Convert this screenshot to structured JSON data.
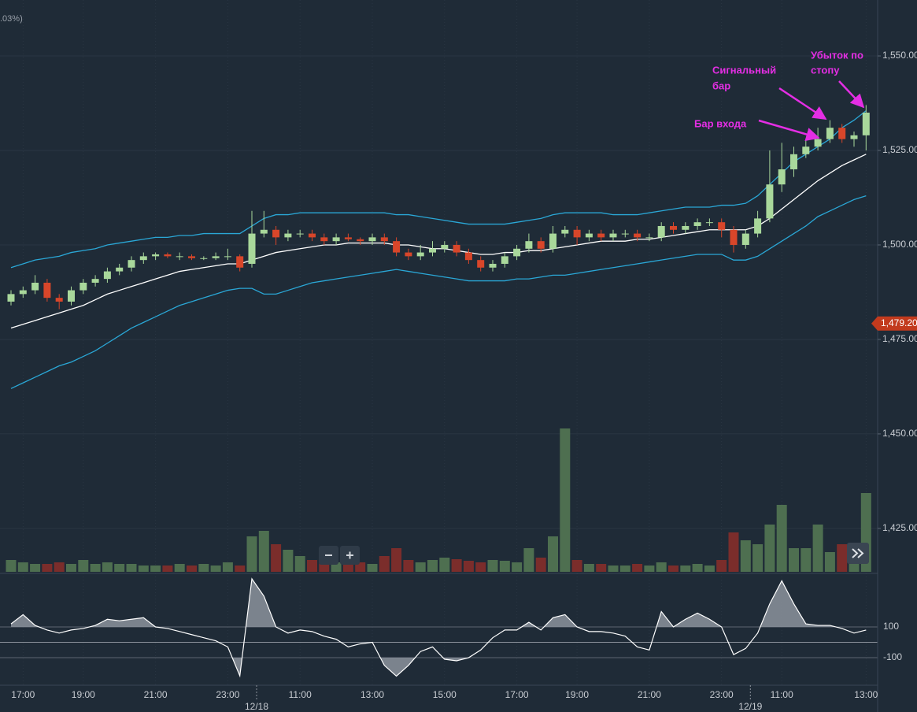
{
  "chart_data": [
    {
      "type": "candlestick",
      "legend_fragment": ".03%)",
      "up_color": "#a9d89b",
      "down_color": "#d8462a",
      "open": [
        1485,
        1487,
        1488,
        1490,
        1486,
        1485,
        1488,
        1490,
        1491,
        1493,
        1494,
        1496,
        1497,
        1497.5,
        1497,
        1497,
        1496.5,
        1496.5,
        1497,
        1497,
        1495,
        1503,
        1504,
        1502,
        1503,
        1503,
        1502,
        1501,
        1502,
        1501.5,
        1501,
        1502,
        1501,
        1498,
        1497,
        1498,
        1499,
        1500,
        1498,
        1496,
        1494,
        1495,
        1497,
        1499,
        1501,
        1499,
        1503,
        1504,
        1502,
        1503,
        1502,
        1503,
        1503,
        1502,
        1502,
        1505,
        1504,
        1505,
        1506,
        1506,
        1504,
        1500,
        1503,
        1507,
        1516,
        1520,
        1524,
        1526,
        1528,
        1531,
        1528,
        1529
      ],
      "high": [
        1488,
        1489,
        1492,
        1491,
        1487,
        1489,
        1491,
        1492,
        1494,
        1495,
        1497,
        1498,
        1498,
        1498,
        1498,
        1497.5,
        1497,
        1498,
        1499,
        1497.5,
        1509,
        1509,
        1505,
        1504,
        1504,
        1504,
        1503,
        1503,
        1503,
        1502,
        1503,
        1503,
        1502,
        1499,
        1500,
        1501,
        1501,
        1501,
        1499,
        1497,
        1496,
        1498,
        1500,
        1503,
        1502,
        1505,
        1505,
        1505,
        1504,
        1504,
        1504,
        1504,
        1504,
        1503,
        1506,
        1506,
        1506,
        1507,
        1507,
        1507,
        1505,
        1504,
        1509,
        1525,
        1527,
        1526,
        1528,
        1531,
        1533,
        1532,
        1530,
        1537
      ],
      "low": [
        1484,
        1486,
        1487,
        1485,
        1483,
        1484,
        1487,
        1489,
        1490,
        1492,
        1493,
        1495,
        1496,
        1496.5,
        1496,
        1496,
        1496,
        1496,
        1496,
        1493,
        1494,
        1502,
        1500,
        1501,
        1502,
        1501,
        1500,
        1500,
        1501,
        1500,
        1500,
        1500,
        1497,
        1496,
        1496,
        1497,
        1498,
        1497,
        1495,
        1493,
        1493,
        1494,
        1496,
        1498,
        1498,
        1498,
        1502,
        1500,
        1501,
        1501,
        1501,
        1502,
        1501,
        1501,
        1501,
        1503,
        1503,
        1504,
        1505,
        1502,
        1498,
        1499,
        1502,
        1506,
        1514,
        1518,
        1523,
        1525,
        1527,
        1527,
        1526,
        1525
      ],
      "close": [
        1487,
        1488,
        1490,
        1486,
        1485,
        1488,
        1490,
        1491,
        1493,
        1494,
        1496,
        1497,
        1497.5,
        1497,
        1497,
        1496.5,
        1496.5,
        1497,
        1497,
        1494,
        1503,
        1504,
        1502,
        1503,
        1503,
        1502,
        1501,
        1502,
        1501.5,
        1501,
        1502,
        1501,
        1498,
        1497,
        1498,
        1499,
        1500,
        1498,
        1496,
        1494,
        1495,
        1497,
        1499,
        1501,
        1499,
        1503,
        1504,
        1502,
        1503,
        1502,
        1503,
        1503,
        1502,
        1502,
        1505,
        1504,
        1505,
        1506,
        1506,
        1504,
        1500,
        1503,
        1507,
        1516,
        1520,
        1524,
        1526,
        1528,
        1531,
        1528,
        1529,
        1535
      ],
      "bands": [
        {
          "color": "#2aa7d6",
          "values": [
            1494,
            1495,
            1496,
            1496.5,
            1497,
            1498,
            1498.5,
            1499,
            1500,
            1500.5,
            1501,
            1501.5,
            1502,
            1502,
            1502.5,
            1502.5,
            1503,
            1503,
            1503,
            1503,
            1505,
            1507,
            1508,
            1508,
            1508.5,
            1508.5,
            1508.5,
            1508.5,
            1508.5,
            1508.5,
            1508.5,
            1508.5,
            1508,
            1508,
            1507.5,
            1507,
            1506.5,
            1506,
            1505.5,
            1505.5,
            1505.5,
            1505.5,
            1506,
            1506.5,
            1507,
            1508,
            1508.5,
            1508.5,
            1508.5,
            1508.5,
            1508,
            1508,
            1508,
            1508.5,
            1509,
            1509.5,
            1510,
            1510,
            1510,
            1510.5,
            1510.5,
            1511,
            1513,
            1516,
            1519,
            1522,
            1524,
            1526,
            1528,
            1531,
            1533,
            1535.5
          ]
        },
        {
          "color": "#ffffff",
          "values": [
            1478,
            1479,
            1480,
            1481,
            1482,
            1483,
            1484,
            1485.5,
            1487,
            1488,
            1489,
            1490,
            1491,
            1492,
            1493,
            1493.5,
            1494,
            1494.5,
            1495,
            1495,
            1496,
            1497,
            1498,
            1498.5,
            1499,
            1499.5,
            1500,
            1500,
            1500.5,
            1500.5,
            1500.5,
            1500.5,
            1500,
            1500,
            1499.5,
            1499,
            1499,
            1498.5,
            1498,
            1497.5,
            1497.5,
            1498,
            1498,
            1498.5,
            1498.5,
            1499,
            1499.5,
            1500,
            1500.5,
            1501,
            1501,
            1501,
            1501.5,
            1501.5,
            1502,
            1502.5,
            1503,
            1503.5,
            1504,
            1504,
            1504,
            1504,
            1505,
            1507,
            1509.5,
            1512,
            1514.5,
            1517,
            1519,
            1521,
            1522.5,
            1524
          ]
        },
        {
          "color": "#2aa7d6",
          "values": [
            1462,
            1463.5,
            1465,
            1466.5,
            1468,
            1469,
            1470.5,
            1472,
            1474,
            1476,
            1478,
            1479.5,
            1481,
            1482.5,
            1484,
            1485,
            1486,
            1487,
            1488,
            1488.5,
            1488.5,
            1487,
            1487,
            1488,
            1489,
            1490,
            1490.5,
            1491,
            1491.5,
            1492,
            1492.5,
            1493,
            1493.5,
            1493,
            1492.5,
            1492,
            1491.5,
            1491,
            1490.5,
            1490.5,
            1490.5,
            1490.5,
            1491,
            1491,
            1491.5,
            1492,
            1492,
            1492.5,
            1493,
            1493.5,
            1494,
            1494.5,
            1495,
            1495.5,
            1496,
            1496.5,
            1497,
            1497.5,
            1497.5,
            1497.5,
            1496,
            1496,
            1497,
            1499,
            1501,
            1503,
            1505,
            1507.5,
            1509,
            1510.5,
            1512,
            1513
          ]
        }
      ],
      "ylim": [
        1413.1,
        1564.8
      ],
      "yticks": [
        {
          "value": 1425,
          "label": "1,425.00"
        },
        {
          "value": 1450,
          "label": "1,450.00"
        },
        {
          "value": 1475,
          "label": "1,475.00"
        },
        {
          "value": 1500,
          "label": "1,500.00"
        },
        {
          "value": 1525,
          "label": "1,525.00"
        },
        {
          "value": 1550,
          "label": "1,550.00"
        }
      ],
      "grid": true,
      "last_price": {
        "value": 1479.2,
        "label": "1,479.20"
      },
      "last_price_color": "#c23a1d",
      "annotations": [
        {
          "lines": [
            "Сигнальный",
            "бар"
          ],
          "color": "#e42ee4"
        },
        {
          "lines": [
            "Бар входа"
          ],
          "color": "#e42ee4"
        },
        {
          "lines": [
            "Убыток по",
            "стопу"
          ],
          "color": "#e42ee4"
        }
      ]
    },
    {
      "type": "bar",
      "up_color": "#4e6f50",
      "down_color": "#7b2d2b",
      "values": [
        15,
        12,
        10,
        10,
        12,
        10,
        15,
        10,
        12,
        10,
        10,
        8,
        8,
        8,
        10,
        8,
        10,
        8,
        12,
        8,
        45,
        52,
        35,
        28,
        20,
        15,
        12,
        12,
        15,
        12,
        10,
        20,
        30,
        15,
        12,
        15,
        18,
        16,
        14,
        12,
        15,
        14,
        12,
        30,
        18,
        45,
        182,
        15,
        10,
        10,
        8,
        8,
        10,
        8,
        12,
        8,
        8,
        10,
        8,
        15,
        50,
        40,
        35,
        60,
        85,
        30,
        30,
        60,
        25,
        35,
        20,
        100
      ],
      "ylim": [
        0,
        190
      ]
    },
    {
      "type": "line",
      "color": "#ffffff",
      "fill_color": "#8c939c",
      "values": [
        120,
        180,
        110,
        80,
        60,
        80,
        90,
        110,
        150,
        140,
        150,
        160,
        100,
        90,
        70,
        50,
        30,
        10,
        -30,
        -218,
        413,
        300,
        100,
        60,
        80,
        70,
        40,
        20,
        -30,
        -10,
        0,
        -150,
        -220,
        -150,
        -60,
        -30,
        -110,
        -120,
        -100,
        -50,
        30,
        80,
        80,
        130,
        80,
        160,
        180,
        100,
        70,
        70,
        60,
        40,
        -30,
        -50,
        200,
        100,
        150,
        190,
        150,
        100,
        -80,
        -40,
        60,
        250,
        400,
        250,
        120,
        110,
        110,
        90,
        60,
        80
      ],
      "ylim": [
        -279,
        438
      ],
      "yticks": [
        100,
        -100
      ],
      "baseline": 0,
      "categories": [
        null,
        "17:00",
        null,
        null,
        null,
        null,
        "19:00",
        null,
        null,
        null,
        null,
        null,
        "21:00",
        null,
        null,
        null,
        null,
        null,
        "23:00",
        null,
        null,
        null,
        null,
        null,
        "11:00",
        null,
        null,
        null,
        null,
        null,
        "13:00",
        null,
        null,
        null,
        null,
        null,
        "15:00",
        null,
        null,
        null,
        null,
        null,
        "17:00",
        null,
        null,
        null,
        null,
        "19:00",
        null,
        null,
        null,
        null,
        null,
        "21:00",
        null,
        null,
        null,
        null,
        null,
        "23:00",
        null,
        null,
        null,
        null,
        "11:00",
        null,
        null,
        null,
        null,
        null,
        null,
        "13:00"
      ],
      "date_labels": [
        null,
        null,
        null,
        null,
        null,
        null,
        null,
        null,
        null,
        null,
        null,
        null,
        null,
        null,
        null,
        null,
        null,
        null,
        null,
        null,
        "12/18",
        null,
        null,
        null,
        null,
        null,
        null,
        null,
        null,
        null,
        null,
        null,
        null,
        null,
        null,
        null,
        null,
        null,
        null,
        null,
        null,
        null,
        null,
        null,
        null,
        null,
        null,
        null,
        null,
        null,
        null,
        null,
        null,
        null,
        null,
        null,
        null,
        null,
        null,
        null,
        null,
        "12/19",
        null,
        null,
        null,
        null,
        null,
        null,
        null,
        null,
        null,
        null
      ]
    }
  ]
}
